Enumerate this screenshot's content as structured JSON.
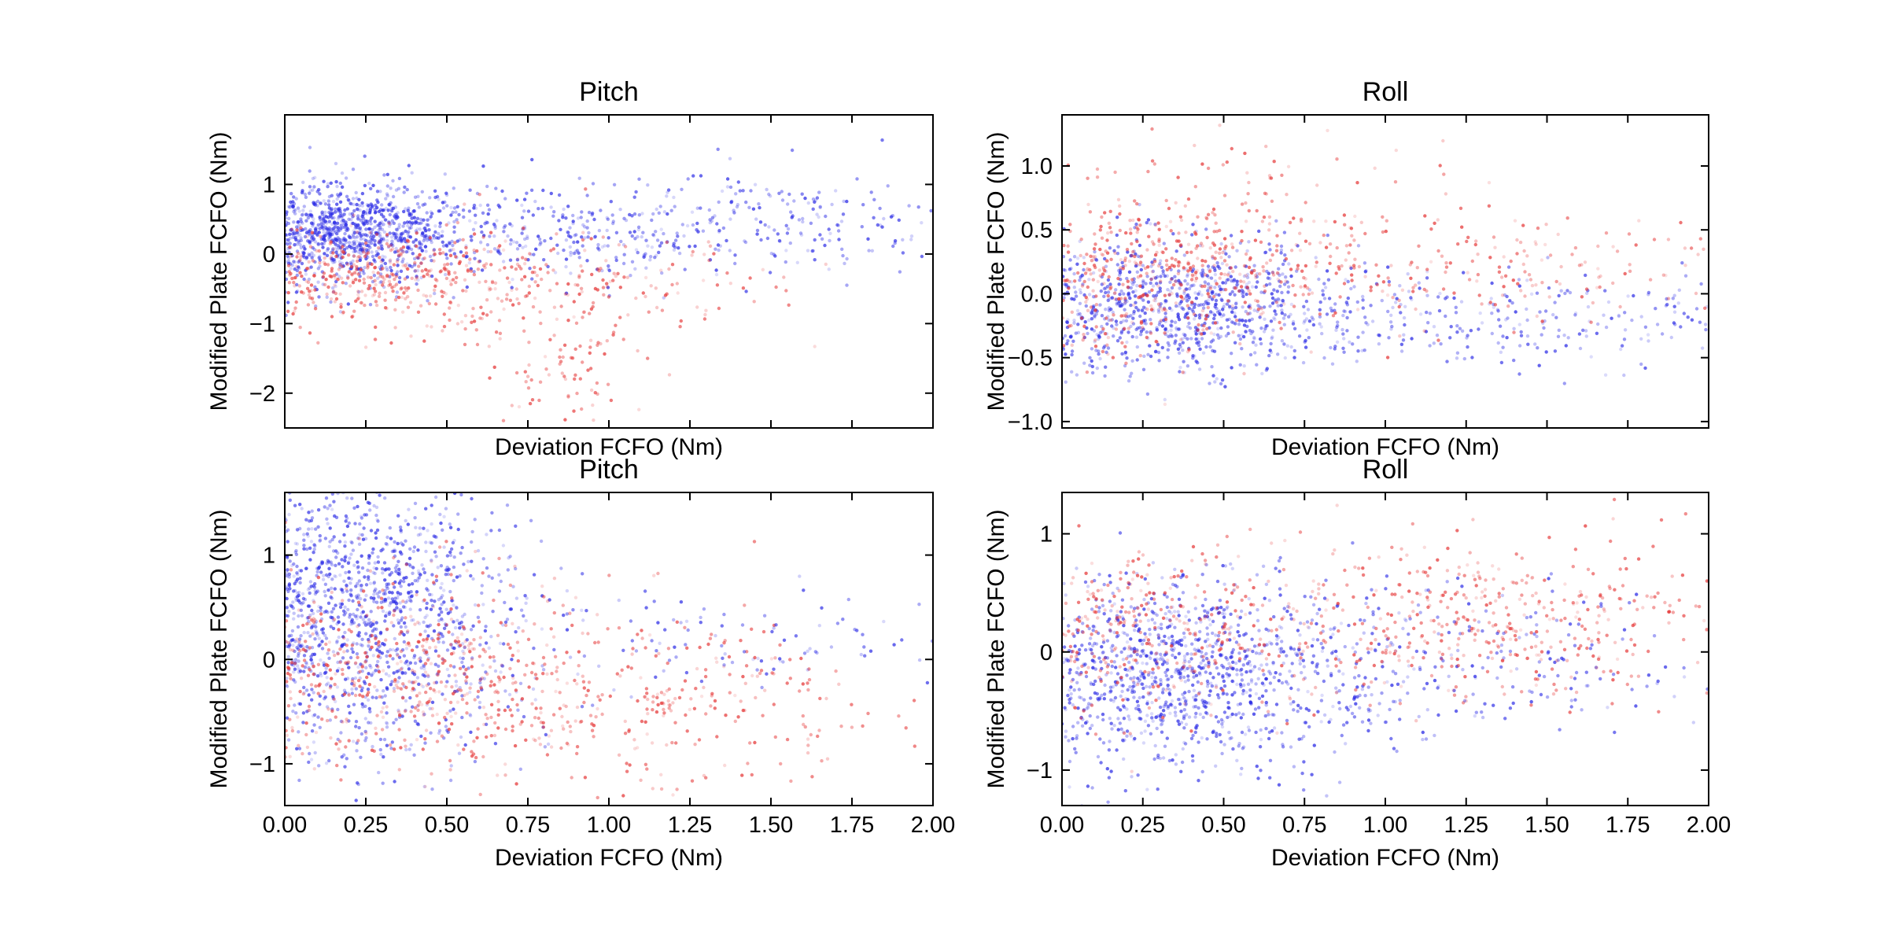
{
  "chart_data": [
    {
      "type": "scatter",
      "title": "Pitch",
      "xlabel": "Deviation FCFO (Nm)",
      "ylabel": "Modified Plate FCFO (Nm)",
      "xlim": [
        0,
        2
      ],
      "ylim": [
        -2.5,
        2
      ],
      "xticks": [
        0,
        0.25,
        0.5,
        0.75,
        1,
        1.25,
        1.5,
        1.75,
        2
      ],
      "xtick_labels": [],
      "yticks": [
        -2,
        -1,
        0,
        1
      ],
      "ytick_labels": [
        "−2",
        "−1",
        "0",
        "1"
      ],
      "colors": {
        "positive": "#2a2ae6",
        "negative": "#e63a3a"
      },
      "clusters": [
        {
          "color": "blue",
          "cx": 0.2,
          "cy": 0.3,
          "sx": 0.18,
          "sy": 0.35,
          "n": 900
        },
        {
          "color": "blue",
          "cx": 0.9,
          "cy": 0.3,
          "sx": 0.5,
          "sy": 0.35,
          "n": 450
        },
        {
          "color": "blue",
          "cx": 1.5,
          "cy": 0.5,
          "sx": 0.35,
          "sy": 0.4,
          "n": 120
        },
        {
          "color": "red",
          "cx": 0.3,
          "cy": -0.3,
          "sx": 0.25,
          "sy": 0.35,
          "n": 350
        },
        {
          "color": "red",
          "cx": 0.8,
          "cy": -0.5,
          "sx": 0.35,
          "sy": 0.4,
          "n": 220
        },
        {
          "color": "red",
          "cx": 0.85,
          "cy": -1.7,
          "sx": 0.1,
          "sy": 0.45,
          "n": 70
        }
      ]
    },
    {
      "type": "scatter",
      "title": "Roll",
      "xlabel": "Deviation FCFO (Nm)",
      "ylabel": "Modified Plate FCFO (Nm)",
      "xlim": [
        0,
        2
      ],
      "ylim": [
        -1.05,
        1.4
      ],
      "xticks": [
        0,
        0.25,
        0.5,
        0.75,
        1,
        1.25,
        1.5,
        1.75,
        2
      ],
      "xtick_labels": [],
      "yticks": [
        -1,
        -0.5,
        0,
        0.5,
        1
      ],
      "ytick_labels": [
        "−1.0",
        "−0.5",
        "0.0",
        "0.5",
        "1.0"
      ],
      "colors": {
        "positive": "#2a2ae6",
        "negative": "#e63a3a"
      },
      "clusters": [
        {
          "color": "blue",
          "cx": 0.35,
          "cy": -0.1,
          "sx": 0.25,
          "sy": 0.25,
          "n": 800
        },
        {
          "color": "blue",
          "cx": 1.2,
          "cy": -0.2,
          "sx": 0.5,
          "sy": 0.2,
          "n": 350
        },
        {
          "color": "red",
          "cx": 0.3,
          "cy": 0.15,
          "sx": 0.25,
          "sy": 0.3,
          "n": 400
        },
        {
          "color": "red",
          "cx": 1.1,
          "cy": 0.2,
          "sx": 0.5,
          "sy": 0.2,
          "n": 260
        },
        {
          "color": "red",
          "cx": 0.6,
          "cy": 0.85,
          "sx": 0.3,
          "sy": 0.25,
          "n": 60
        }
      ]
    },
    {
      "type": "scatter",
      "title": "Pitch",
      "xlabel": "Deviation FCFO (Nm)",
      "ylabel": "Modified Plate FCFO (Nm)",
      "xlim": [
        0,
        2
      ],
      "ylim": [
        -1.4,
        1.6
      ],
      "xticks": [
        0,
        0.25,
        0.5,
        0.75,
        1,
        1.25,
        1.5,
        1.75,
        2
      ],
      "xtick_labels": [
        "0.00",
        "0.25",
        "0.50",
        "0.75",
        "1.00",
        "1.25",
        "1.50",
        "1.75",
        "2.00"
      ],
      "yticks": [
        -1,
        0,
        1
      ],
      "ytick_labels": [
        "−1",
        "0",
        "1"
      ],
      "colors": {
        "positive": "#2a2ae6",
        "negative": "#e63a3a"
      },
      "clusters": [
        {
          "color": "blue",
          "cx": 0.25,
          "cy": 0.7,
          "sx": 0.22,
          "sy": 0.5,
          "n": 850
        },
        {
          "color": "blue",
          "cx": 0.3,
          "cy": -0.2,
          "sx": 0.22,
          "sy": 0.45,
          "n": 400
        },
        {
          "color": "red",
          "cx": 0.4,
          "cy": -0.1,
          "sx": 0.3,
          "sy": 0.45,
          "n": 450
        },
        {
          "color": "red",
          "cx": 1.1,
          "cy": -0.4,
          "sx": 0.4,
          "sy": 0.4,
          "n": 320
        },
        {
          "color": "blue",
          "cx": 1.3,
          "cy": 0.2,
          "sx": 0.45,
          "sy": 0.25,
          "n": 120
        }
      ]
    },
    {
      "type": "scatter",
      "title": "Roll",
      "xlabel": "Deviation FCFO (Nm)",
      "ylabel": "Modified Plate FCFO (Nm)",
      "xlim": [
        0,
        2
      ],
      "ylim": [
        -1.3,
        1.35
      ],
      "xticks": [
        0,
        0.25,
        0.5,
        0.75,
        1,
        1.25,
        1.5,
        1.75,
        2
      ],
      "xtick_labels": [
        "0.00",
        "0.25",
        "0.50",
        "0.75",
        "1.00",
        "1.25",
        "1.50",
        "1.75",
        "2.00"
      ],
      "yticks": [
        -1,
        0,
        1
      ],
      "ytick_labels": [
        "−1",
        "0",
        "1"
      ],
      "colors": {
        "positive": "#2a2ae6",
        "negative": "#e63a3a"
      },
      "clusters": [
        {
          "color": "blue",
          "cx": 0.35,
          "cy": -0.2,
          "sx": 0.22,
          "sy": 0.4,
          "n": 900
        },
        {
          "color": "blue",
          "cx": 0.8,
          "cy": -0.1,
          "sx": 0.35,
          "sy": 0.35,
          "n": 300
        },
        {
          "color": "red",
          "cx": 0.3,
          "cy": 0.15,
          "sx": 0.25,
          "sy": 0.35,
          "n": 300
        },
        {
          "color": "red",
          "cx": 1.3,
          "cy": 0.25,
          "sx": 0.4,
          "sy": 0.35,
          "n": 450
        },
        {
          "color": "blue",
          "cx": 1.4,
          "cy": -0.1,
          "sx": 0.35,
          "sy": 0.3,
          "n": 120
        }
      ]
    }
  ]
}
